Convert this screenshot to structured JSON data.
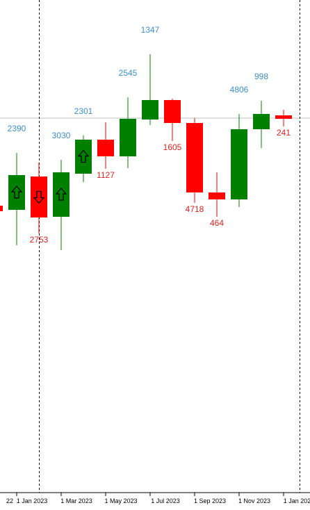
{
  "chart_data": {
    "type": "candlestick",
    "colors": {
      "up": "#008000",
      "down": "#ff0000",
      "high_label": "#3b8fd0",
      "low_label": "#e02020",
      "wick_up": "#008000",
      "wick_down": "#ff0000",
      "price_line": "#c0c0c0",
      "separator": "#000000"
    },
    "y_range": [
      0,
      734
    ],
    "price_line": 538,
    "separators": [
      "1 Jan 2023",
      "1 Jan 2024"
    ],
    "candles": [
      {
        "date": "Nov 2022",
        "open": 412,
        "close": 404,
        "high": 412,
        "low": 404,
        "label_high": "0",
        "label_low": "",
        "arrow": ""
      },
      {
        "date": "Dec 2022",
        "open": 406,
        "close": 456,
        "high": 488,
        "low": 355,
        "label_high": "2390",
        "label_low": "",
        "arrow": "up"
      },
      {
        "date": "1 Jan 2023",
        "open": 454,
        "close": 395,
        "high": 474,
        "low": 372,
        "label_high": "",
        "label_low": "2753",
        "arrow": "down"
      },
      {
        "date": "Feb 2023",
        "open": 396,
        "close": 460,
        "high": 478,
        "low": 348,
        "label_high": "3030",
        "label_low": "",
        "arrow": "up"
      },
      {
        "date": "1 Mar 2023",
        "open": 458,
        "close": 507,
        "high": 513,
        "low": 446,
        "label_high": "2301",
        "label_low": "",
        "arrow": "up"
      },
      {
        "date": "Apr 2023",
        "open": 507,
        "close": 483,
        "high": 532,
        "low": 465,
        "label_high": "",
        "label_low": "1127",
        "arrow": ""
      },
      {
        "date": "1 May 2023",
        "open": 483,
        "close": 537,
        "high": 568,
        "low": 466,
        "label_high": "2545",
        "label_low": "",
        "arrow": ""
      },
      {
        "date": "Jun 2023",
        "open": 536,
        "close": 564,
        "high": 630,
        "low": 528,
        "label_high": "1347",
        "label_low": "",
        "arrow": ""
      },
      {
        "date": "1 Jul 2023",
        "open": 564,
        "close": 531,
        "high": 566,
        "low": 505,
        "label_high": "",
        "label_low": "1605",
        "arrow": ""
      },
      {
        "date": "Aug 2023",
        "open": 531,
        "close": 431,
        "high": 538,
        "low": 416,
        "label_high": "",
        "label_low": "4718",
        "arrow": ""
      },
      {
        "date": "1 Sep 2023",
        "open": 431,
        "close": 421,
        "high": 460,
        "low": 396,
        "label_high": "",
        "label_low": "464",
        "arrow": ""
      },
      {
        "date": "Oct 2023",
        "open": 421,
        "close": 522,
        "high": 544,
        "low": 410,
        "label_high": "4806",
        "label_low": "",
        "arrow": ""
      },
      {
        "date": "1 Nov 2023",
        "open": 522,
        "close": 544,
        "high": 563,
        "low": 495,
        "label_high": "998",
        "label_low": "",
        "arrow": ""
      },
      {
        "date": "Dec 2023",
        "open": 542,
        "close": 537,
        "high": 550,
        "low": 526,
        "label_high": "",
        "label_low": "241",
        "arrow": ""
      }
    ],
    "x_ticks": [
      "22",
      "1 Jan 2023",
      "1 Mar 2023",
      "1 May 2023",
      "1 Jul 2023",
      "1 Sep 2023",
      "1 Nov 2023",
      "1 Jan 2024"
    ]
  }
}
